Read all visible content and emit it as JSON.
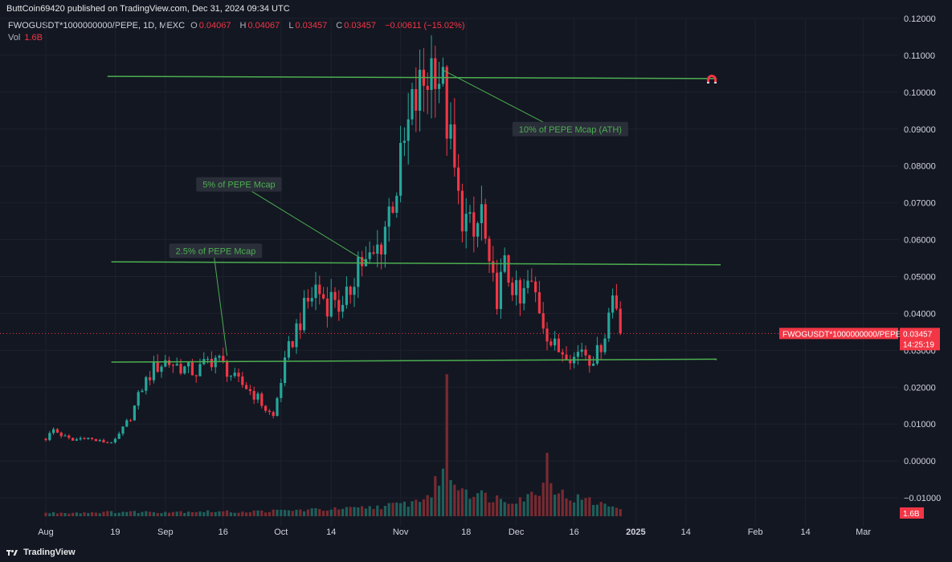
{
  "header": {
    "publisher_line": "ButtCoin69420 published on TradingView.com, Dec 31, 2024 09:34 UTC"
  },
  "legend": {
    "symbol": "FWOGUSDT*1000000000/PEPE, 1D, MEXC",
    "o_label": "O",
    "o_value": "0.04067",
    "h_label": "H",
    "h_value": "0.04067",
    "l_label": "L",
    "l_value": "0.03457",
    "c_label": "C",
    "c_value": "0.03457",
    "change": "−0.00611 (−15.02%)",
    "vol_label": "Vol",
    "vol_value": "1.6B"
  },
  "footer": {
    "brand": "TradingView"
  },
  "colors": {
    "background": "#131722",
    "up": "#26a69a",
    "down": "#f23645",
    "level_line": "#4caf50",
    "annotation_text": "#4caf50",
    "vol_up": "#1f5f5a",
    "vol_down": "#7a2a30"
  },
  "chart_data": {
    "type": "candlestick",
    "ylim": [
      -0.015,
      0.12
    ],
    "y_ticks": [
      "0.12000",
      "0.11000",
      "0.10000",
      "0.09000",
      "0.08000",
      "0.07000",
      "0.06000",
      "0.05000",
      "0.04000",
      "0.03000",
      "0.02000",
      "0.01000",
      "0.00000",
      "−0.01000"
    ],
    "x_ticks": [
      {
        "label": "Aug",
        "day": 0
      },
      {
        "label": "19",
        "day": 18
      },
      {
        "label": "Sep",
        "day": 31
      },
      {
        "label": "16",
        "day": 46
      },
      {
        "label": "Oct",
        "day": 61
      },
      {
        "label": "14",
        "day": 74
      },
      {
        "label": "Nov",
        "day": 92
      },
      {
        "label": "18",
        "day": 109
      },
      {
        "label": "Dec",
        "day": 122
      },
      {
        "label": "16",
        "day": 137
      },
      {
        "label": "2025",
        "day": 153
      },
      {
        "label": "14",
        "day": 166
      },
      {
        "label": "Feb",
        "day": 184
      },
      {
        "label": "14",
        "day": 197
      },
      {
        "label": "Mar",
        "day": 212
      }
    ],
    "price_path": [
      [
        0,
        0.006
      ],
      [
        2,
        0.0085
      ],
      [
        4,
        0.007
      ],
      [
        7,
        0.0055
      ],
      [
        10,
        0.0065
      ],
      [
        13,
        0.0055
      ],
      [
        16,
        0.005
      ],
      [
        18,
        0.0055
      ],
      [
        22,
        0.012
      ],
      [
        25,
        0.02
      ],
      [
        28,
        0.025
      ],
      [
        31,
        0.027
      ],
      [
        34,
        0.026
      ],
      [
        36,
        0.025
      ],
      [
        39,
        0.024
      ],
      [
        42,
        0.027
      ],
      [
        44,
        0.028
      ],
      [
        46,
        0.026
      ],
      [
        49,
        0.022
      ],
      [
        52,
        0.02
      ],
      [
        55,
        0.017
      ],
      [
        57,
        0.014
      ],
      [
        59,
        0.012
      ],
      [
        61,
        0.022
      ],
      [
        63,
        0.03
      ],
      [
        65,
        0.036
      ],
      [
        68,
        0.043
      ],
      [
        70,
        0.047
      ],
      [
        73,
        0.043
      ],
      [
        75,
        0.045
      ],
      [
        77,
        0.04
      ],
      [
        79,
        0.047
      ],
      [
        81,
        0.055
      ],
      [
        83,
        0.053
      ],
      [
        85,
        0.055
      ],
      [
        87,
        0.06
      ],
      [
        89,
        0.068
      ],
      [
        91,
        0.075
      ],
      [
        93,
        0.085
      ],
      [
        95,
        0.095
      ],
      [
        97,
        0.1
      ],
      [
        99,
        0.105
      ],
      [
        101,
        0.11
      ],
      [
        103,
        0.1
      ],
      [
        105,
        0.085
      ],
      [
        107,
        0.07
      ],
      [
        109,
        0.065
      ],
      [
        111,
        0.06
      ],
      [
        113,
        0.068
      ],
      [
        115,
        0.05
      ],
      [
        117,
        0.045
      ],
      [
        119,
        0.052
      ],
      [
        121,
        0.048
      ],
      [
        123,
        0.042
      ],
      [
        125,
        0.048
      ],
      [
        127,
        0.045
      ],
      [
        129,
        0.038
      ],
      [
        131,
        0.032
      ],
      [
        133,
        0.03
      ],
      [
        135,
        0.03
      ],
      [
        137,
        0.028
      ],
      [
        139,
        0.031
      ],
      [
        141,
        0.028
      ],
      [
        143,
        0.029
      ],
      [
        145,
        0.035
      ],
      [
        147,
        0.045
      ],
      [
        149,
        0.04
      ]
    ],
    "volume_path": [
      [
        0,
        6
      ],
      [
        10,
        7
      ],
      [
        20,
        8
      ],
      [
        30,
        8
      ],
      [
        40,
        9
      ],
      [
        50,
        8
      ],
      [
        60,
        10
      ],
      [
        70,
        12
      ],
      [
        80,
        14
      ],
      [
        90,
        20
      ],
      [
        95,
        25
      ],
      [
        100,
        40
      ],
      [
        103,
        90
      ],
      [
        104,
        220
      ],
      [
        105,
        70
      ],
      [
        110,
        45
      ],
      [
        115,
        35
      ],
      [
        120,
        30
      ],
      [
        125,
        35
      ],
      [
        129,
        55
      ],
      [
        130,
        120
      ],
      [
        132,
        50
      ],
      [
        135,
        35
      ],
      [
        140,
        30
      ],
      [
        145,
        20
      ],
      [
        149,
        18
      ]
    ],
    "level_lines": [
      {
        "from_day": 16,
        "to_day": 174,
        "start": 0.1043,
        "end": 0.1037
      },
      {
        "from_day": 17,
        "to_day": 175,
        "start": 0.054,
        "end": 0.0532
      },
      {
        "from_day": 17,
        "to_day": 174,
        "start": 0.0268,
        "end": 0.0276
      }
    ],
    "annotations": [
      {
        "text": "10% of PEPE Mcap (ATH)",
        "point": {
          "day": 103,
          "price": 0.106
        },
        "label_at": {
          "day": 121,
          "price": 0.09
        }
      },
      {
        "text": "5% of PEPE Mcap",
        "point": {
          "day": 84,
          "price": 0.0535
        },
        "label_at": {
          "day": 39,
          "price": 0.075
        }
      },
      {
        "text": "2.5% of PEPE Mcap",
        "point": {
          "day": 47,
          "price": 0.0285
        },
        "label_at": {
          "day": 32,
          "price": 0.057
        }
      }
    ],
    "last_price": {
      "symbol": "FWOGUSDT*1000000000/PEPE",
      "value": 0.03457,
      "value_label": "0.03457",
      "countdown": "14:25:19",
      "volume_label": "1.6B"
    }
  }
}
